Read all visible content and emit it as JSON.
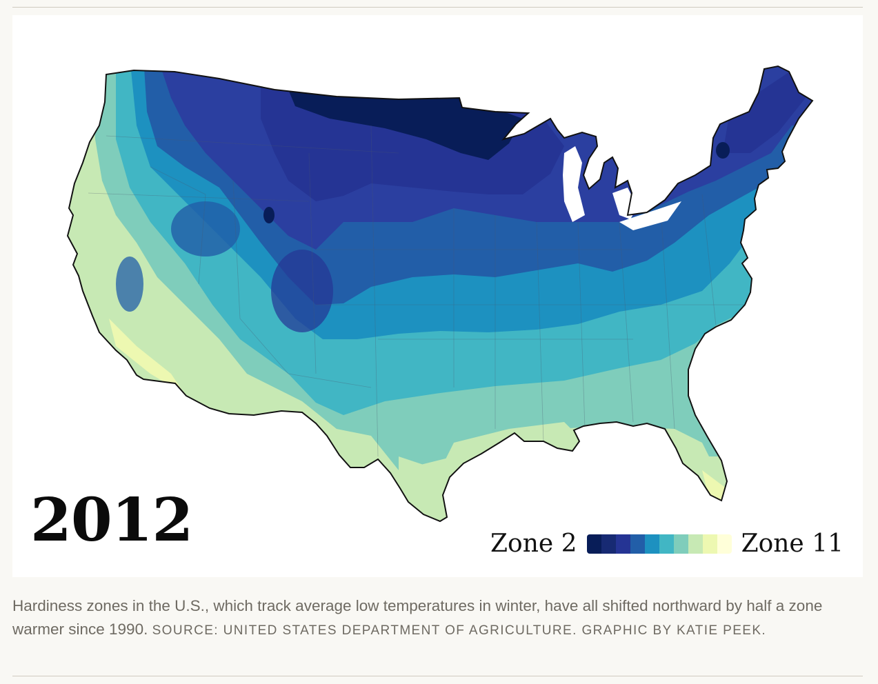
{
  "map": {
    "year": "2012",
    "legend": {
      "start_label": "Zone 2",
      "end_label": "Zone 11",
      "colors": [
        "#081d58",
        "#172a73",
        "#253494",
        "#225ea8",
        "#1d91c0",
        "#41b6c4",
        "#7fcdbb",
        "#c7e9b4",
        "#edf8b1",
        "#ffffd9"
      ]
    },
    "region": "contiguous-united-states",
    "zone_colors": {
      "zone_2": "#081d58",
      "zone_3": "#253494",
      "zone_4": "#2b3fa0",
      "zone_5": "#225ea8",
      "zone_6": "#1d91c0",
      "zone_7": "#41b6c4",
      "zone_8": "#7fcdbb",
      "zone_9": "#c7e9b4",
      "zone_10": "#edf8b1"
    }
  },
  "caption": {
    "text": "Hardiness zones in the U.S., which track average low temperatures in winter, have all shifted northward by half a zone warmer since 1990.",
    "source": "Source: United States Department of Agriculture. Graphic by Katie Peek."
  }
}
